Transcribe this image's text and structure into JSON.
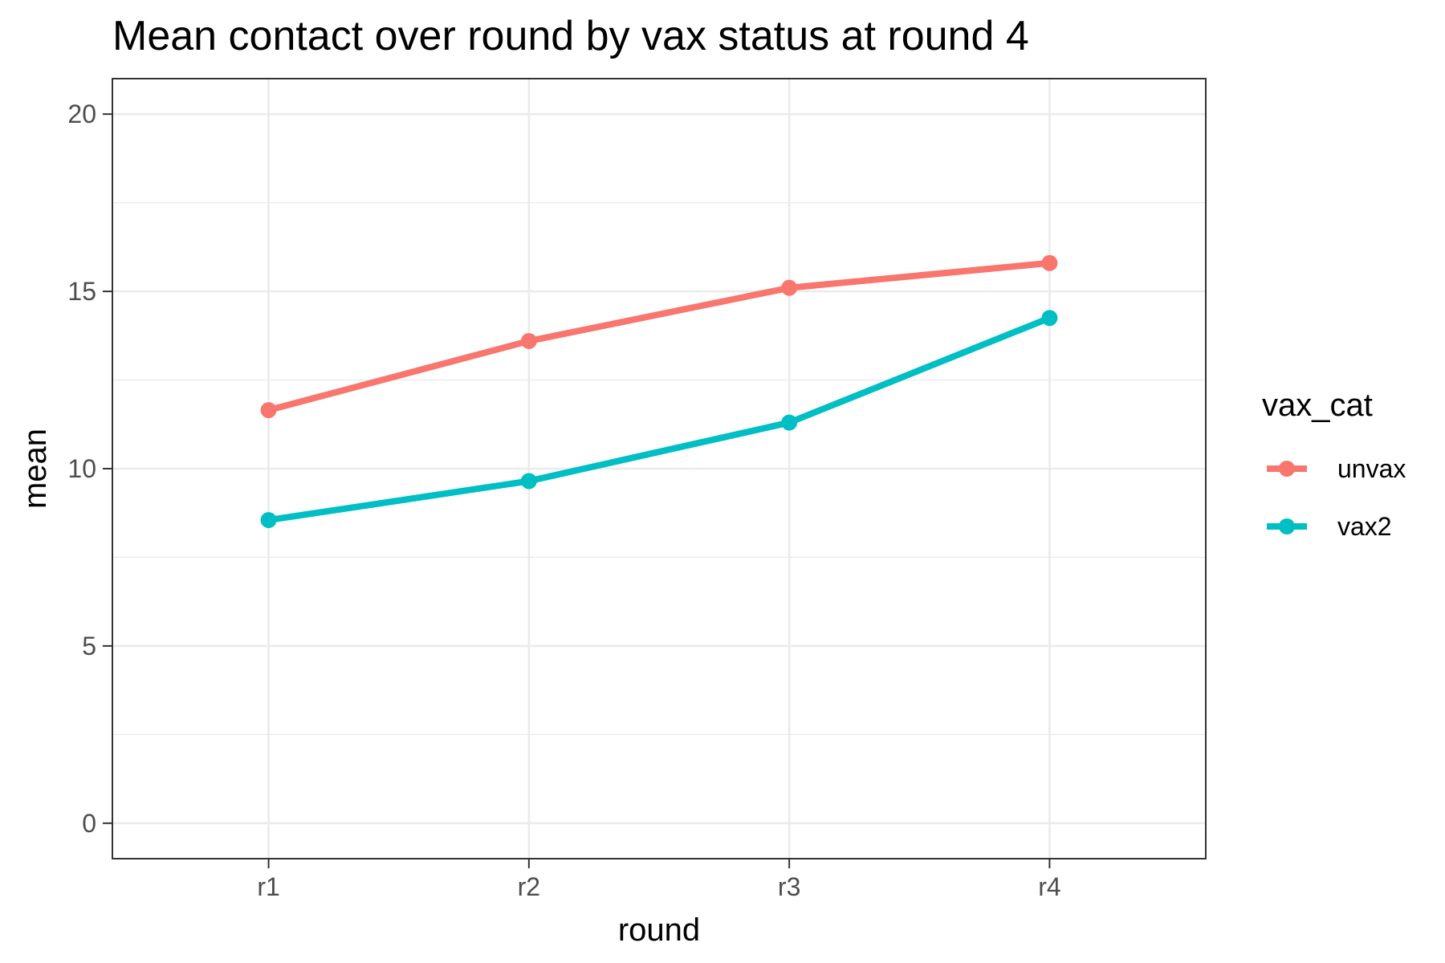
{
  "chart_data": {
    "type": "line",
    "title": "Mean contact over round by vax status at round 4",
    "xlabel": "round",
    "ylabel": "mean",
    "categories": [
      "r1",
      "r2",
      "r3",
      "r4"
    ],
    "ylim": [
      -1,
      21
    ],
    "yticks": [
      "0",
      "5",
      "10",
      "15",
      "20"
    ],
    "ytick_values": [
      0,
      5,
      10,
      15,
      20
    ],
    "grid": true,
    "legend": {
      "title": "vax_cat",
      "placement": "right"
    },
    "series": [
      {
        "name": "unvax",
        "color": "#F8766D",
        "values": [
          11.65,
          13.6,
          15.1,
          15.8
        ]
      },
      {
        "name": "vax2",
        "color": "#00BFC4",
        "values": [
          8.55,
          9.65,
          11.3,
          14.25
        ]
      }
    ]
  }
}
